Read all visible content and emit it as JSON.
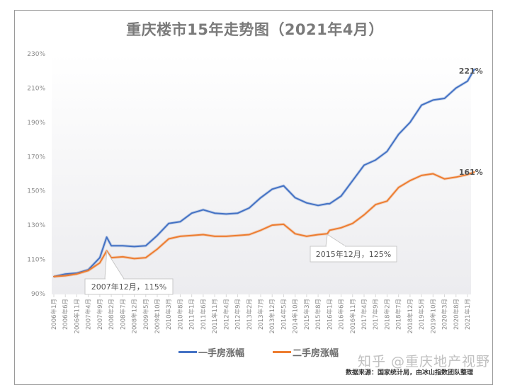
{
  "title": "重庆楼市15年走势图（2021年4月）",
  "legend": [
    {
      "label": "一手房涨幅",
      "color": "#4472C4"
    },
    {
      "label": "二手房涨幅",
      "color": "#ED7D31"
    }
  ],
  "annotations": [
    {
      "text": "2007年12月，115%",
      "series": 1,
      "x_label": "2007年12月",
      "value": 115
    },
    {
      "text": "2015年12月，125%",
      "series": 1,
      "x_label": "2015年12月",
      "value": 125
    }
  ],
  "end_labels": {
    "first_hand": "221%",
    "second_hand": "161%"
  },
  "watermark": "知乎 @重庆地产视野",
  "source": "数据来源：国家统计局，由冰山指数团队整理",
  "chart_data": {
    "type": "line",
    "title": "重庆楼市15年走势图（2021年4月）",
    "xlabel": "",
    "ylabel": "",
    "ylim": [
      90,
      230
    ],
    "yticks": [
      "90%",
      "110%",
      "130%",
      "150%",
      "170%",
      "190%",
      "210%",
      "230%"
    ],
    "grid": false,
    "legend_position": "bottom",
    "x": [
      "2006年1月",
      "2006年6月",
      "2006年11月",
      "2007年4月",
      "2007年9月",
      "2007年12月",
      "2008年2月",
      "2008年7月",
      "2008年12月",
      "2009年5月",
      "2009年10月",
      "2010年3月",
      "2010年8月",
      "2011年1月",
      "2011年6月",
      "2011年11月",
      "2012年4月",
      "2012年9月",
      "2013年2月",
      "2013年7月",
      "2013年12月",
      "2014年5月",
      "2014年10月",
      "2015年3月",
      "2015年8月",
      "2015年12月",
      "2016年1月",
      "2016年6月",
      "2016年11月",
      "2017年4月",
      "2017年9月",
      "2018年2月",
      "2018年7月",
      "2018年12月",
      "2019年5月",
      "2019年10月",
      "2020年3月",
      "2020年8月",
      "2021年1月",
      "2021年4月"
    ],
    "x_months": [
      0,
      5,
      10,
      15,
      20,
      23,
      25,
      30,
      35,
      40,
      45,
      50,
      55,
      60,
      65,
      70,
      75,
      80,
      85,
      90,
      95,
      100,
      105,
      110,
      115,
      119,
      120,
      125,
      130,
      135,
      140,
      145,
      150,
      155,
      160,
      165,
      170,
      175,
      180,
      183
    ],
    "xtick_labels": [
      "2006年1月",
      "2006年6月",
      "2006年11月",
      "2007年4月",
      "2007年9月",
      "2008年2月",
      "2008年7月",
      "2008年12月",
      "2009年5月",
      "2009年10月",
      "2010年3月",
      "2010年8月",
      "2011年1月",
      "2011年6月",
      "2011年11月",
      "2012年4月",
      "2012年9月",
      "2013年2月",
      "2013年7月",
      "2013年12月",
      "2014年5月",
      "2014年10月",
      "2015年3月",
      "2015年8月",
      "2016年1月",
      "2016年6月",
      "2016年11月",
      "2017年4月",
      "2017年9月",
      "2018年2月",
      "2018年7月",
      "2018年12月",
      "2019年5月",
      "2019年10月",
      "2020年3月",
      "2020年8月",
      "2021年1月"
    ],
    "series": [
      {
        "name": "一手房涨幅",
        "color": "#4472C4",
        "values": [
          100,
          101.5,
          102,
          104,
          111,
          123,
          118,
          118,
          117.5,
          118,
          124,
          131,
          132,
          137,
          139,
          137,
          136.5,
          137,
          140,
          146,
          151,
          153,
          146,
          143,
          141.5,
          142.5,
          142.5,
          147,
          156,
          165,
          168,
          173,
          183,
          190,
          200,
          203,
          204,
          210,
          214,
          221
        ]
      },
      {
        "name": "二手房涨幅",
        "color": "#ED7D31",
        "values": [
          100,
          100.5,
          101.5,
          103.5,
          108,
          115,
          111,
          111.5,
          110.5,
          111,
          116,
          122,
          123.5,
          124,
          124.5,
          123.5,
          123.5,
          124,
          124.5,
          127,
          130,
          130.5,
          125,
          123.5,
          124.5,
          125,
          127,
          128.5,
          131,
          136,
          142,
          144,
          152,
          156,
          159,
          160,
          157,
          158,
          159.5,
          161
        ]
      }
    ]
  }
}
